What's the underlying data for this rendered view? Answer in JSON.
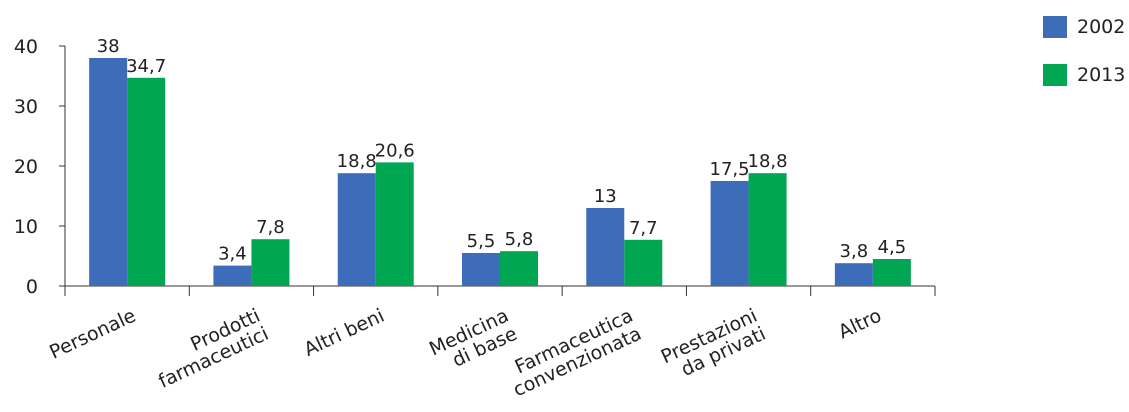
{
  "chart_data": {
    "type": "bar",
    "categories": [
      [
        "Personale"
      ],
      [
        "Prodotti",
        "farmaceutici"
      ],
      [
        "Altri beni"
      ],
      [
        "Medicina",
        "di base"
      ],
      [
        "Farmaceutica",
        "convenzionata"
      ],
      [
        "Prestazioni",
        "da privati"
      ],
      [
        "Altro"
      ]
    ],
    "series": [
      {
        "name": "2002",
        "color": "#3d6cb9",
        "values": [
          38,
          3.4,
          18.8,
          5.5,
          13,
          17.5,
          3.8
        ],
        "labels": [
          "38",
          "3,4",
          "18,8",
          "5,5",
          "13",
          "17,5",
          "3,8"
        ]
      },
      {
        "name": "2013",
        "color": "#00a651",
        "values": [
          34.7,
          7.8,
          20.6,
          5.8,
          7.7,
          18.8,
          4.5
        ],
        "labels": [
          "34,7",
          "7,8",
          "20,6",
          "5,8",
          "7,7",
          "18,8",
          "4,5"
        ]
      }
    ],
    "yticks": [
      "0",
      "10",
      "20",
      "30",
      "40"
    ],
    "ylim": [
      0,
      40
    ],
    "grid": false,
    "legend_position": "top-right"
  }
}
